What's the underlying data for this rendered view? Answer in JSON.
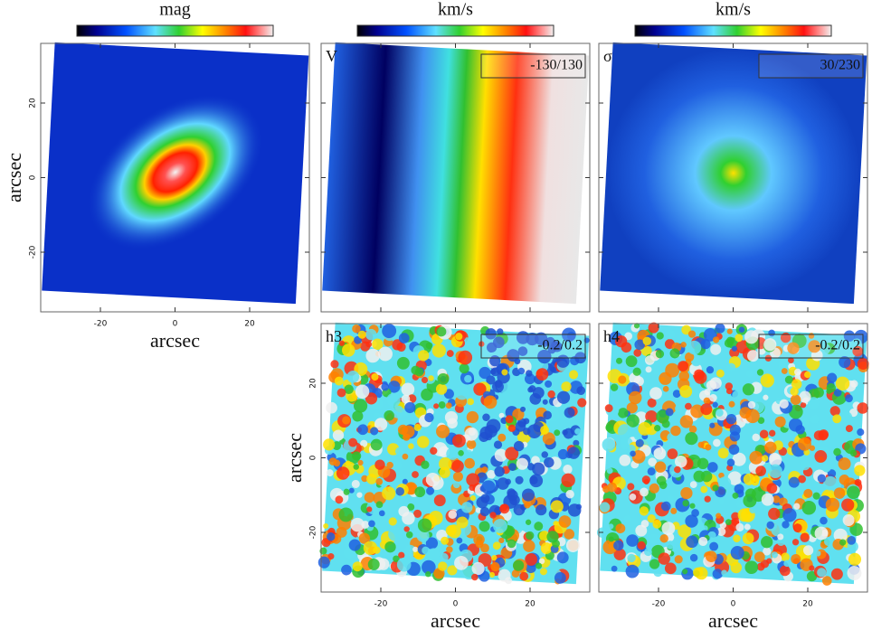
{
  "chart_data": [
    {
      "type": "map",
      "colorbar_label": "mag",
      "xlabel": "arcsec",
      "ylabel": "arcsec",
      "xlim": [
        -36,
        36
      ],
      "ylim": [
        -36,
        36
      ],
      "xticks": [
        -20,
        0,
        20
      ],
      "yticks": [
        -20,
        0,
        20
      ]
    },
    {
      "type": "map",
      "colorbar_label": "km/s",
      "label": "V",
      "range_label": "-130/130",
      "xlim": [
        -36,
        36
      ],
      "ylim": [
        -36,
        36
      ],
      "xticks": [
        -20,
        0,
        20
      ],
      "yticks": [
        -20,
        0,
        20
      ]
    },
    {
      "type": "map",
      "colorbar_label": "km/s",
      "label": "σ",
      "range_label": "30/230",
      "xlim": [
        -36,
        36
      ],
      "ylim": [
        -36,
        36
      ],
      "xticks": [
        -20,
        0,
        20
      ],
      "yticks": [
        -20,
        0,
        20
      ]
    },
    {
      "type": "map",
      "label": "h3",
      "range_label": "-0.2/0.2",
      "xlabel": "arcsec",
      "ylabel": "arcsec",
      "xlim": [
        -36,
        36
      ],
      "ylim": [
        -36,
        36
      ],
      "xticks": [
        -20,
        0,
        20
      ],
      "yticks": [
        -20,
        0,
        20
      ]
    },
    {
      "type": "map",
      "label": "h4",
      "range_label": "-0.2/0.2",
      "xlabel": "arcsec",
      "xlim": [
        -36,
        36
      ],
      "ylim": [
        -36,
        36
      ],
      "xticks": [
        -20,
        0,
        20
      ],
      "yticks": [
        -20,
        0,
        20
      ]
    }
  ]
}
